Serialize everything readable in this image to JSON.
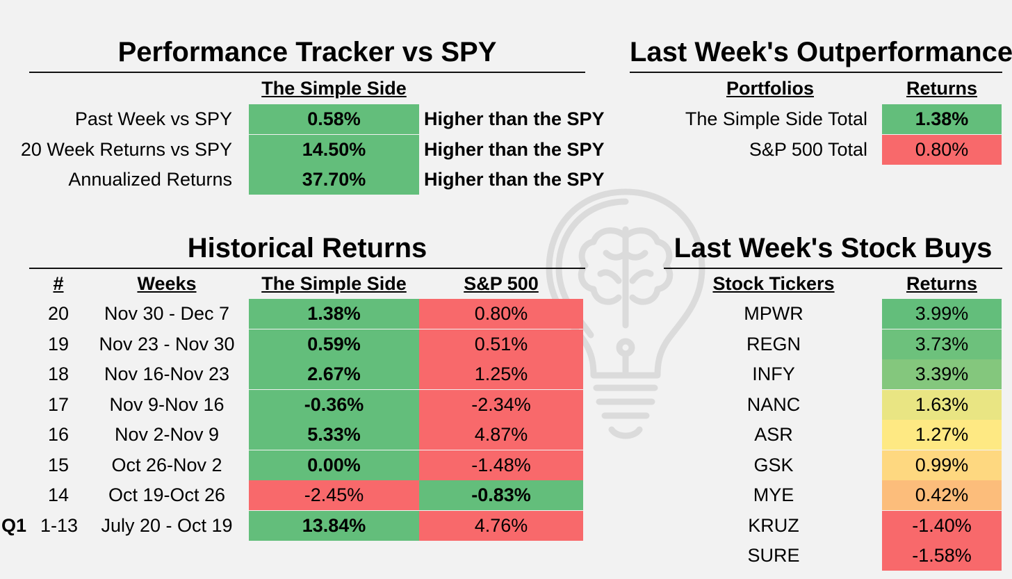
{
  "tracker": {
    "title": "Performance Tracker vs SPY",
    "col_header": "The Simple Side",
    "rows": [
      {
        "label": "Past Week vs SPY",
        "value": "0.58%",
        "note": "Higher than the SPY"
      },
      {
        "label": "20 Week Returns vs SPY",
        "value": "14.50%",
        "note": "Higher than the SPY"
      },
      {
        "label": "Annualized Returns",
        "value": "37.70%",
        "note": "Higher than the SPY"
      }
    ]
  },
  "outperformance": {
    "title": "Last Week's Outperformance",
    "headers": {
      "portfolios": "Portfolios",
      "returns": "Returns"
    },
    "rows": [
      {
        "name": "The Simple Side Total",
        "value": "1.38%",
        "color": "#63be7b",
        "bold": true
      },
      {
        "name": "S&P 500 Total",
        "value": "0.80%",
        "color": "#f8696b",
        "bold": false
      }
    ]
  },
  "historical": {
    "title": "Historical Returns",
    "headers": {
      "num": "#",
      "weeks": "Weeks",
      "simple": "The Simple Side",
      "sp": "S&P 500"
    },
    "quarter_label": "Q1",
    "rows": [
      {
        "num": "20",
        "weeks": "Nov 30 - Dec 7",
        "simple": "1.38%",
        "sp": "0.80%",
        "simple_win": true
      },
      {
        "num": "19",
        "weeks": "Nov 23 - Nov 30",
        "simple": "0.59%",
        "sp": "0.51%",
        "simple_win": true
      },
      {
        "num": "18",
        "weeks": "Nov 16-Nov 23",
        "simple": "2.67%",
        "sp": "1.25%",
        "simple_win": true
      },
      {
        "num": "17",
        "weeks": "Nov 9-Nov 16",
        "simple": "-0.36%",
        "sp": "-2.34%",
        "simple_win": true
      },
      {
        "num": "16",
        "weeks": "Nov 2-Nov 9",
        "simple": "5.33%",
        "sp": "4.87%",
        "simple_win": true
      },
      {
        "num": "15",
        "weeks": "Oct 26-Nov 2",
        "simple": "0.00%",
        "sp": "-1.48%",
        "simple_win": true
      },
      {
        "num": "14",
        "weeks": "Oct 19-Oct 26",
        "simple": "-2.45%",
        "sp": "-0.83%",
        "simple_win": false
      },
      {
        "num": "1-13",
        "weeks": "July 20 - Oct 19",
        "simple": "13.84%",
        "sp": "4.76%",
        "simple_win": true
      }
    ]
  },
  "buys": {
    "title": "Last Week's Stock Buys",
    "headers": {
      "tickers": "Stock Tickers",
      "returns": "Returns"
    },
    "rows": [
      {
        "ticker": "MPWR",
        "value": "3.99%",
        "color": "#63be7b"
      },
      {
        "ticker": "REGN",
        "value": "3.73%",
        "color": "#6dc17c"
      },
      {
        "ticker": "INFY",
        "value": "3.39%",
        "color": "#84c77d"
      },
      {
        "ticker": "NANC",
        "value": "1.63%",
        "color": "#e9e583"
      },
      {
        "ticker": "ASR",
        "value": "1.27%",
        "color": "#fee983"
      },
      {
        "ticker": "GSK",
        "value": "0.99%",
        "color": "#fed880"
      },
      {
        "ticker": "MYE",
        "value": "0.42%",
        "color": "#fcbd7b"
      },
      {
        "ticker": "KRUZ",
        "value": "-1.40%",
        "color": "#f8696b"
      },
      {
        "ticker": "SURE",
        "value": "-1.58%",
        "color": "#f8696b"
      }
    ]
  },
  "colors": {
    "positive": "#63be7b",
    "negative": "#f8696b",
    "background": "#f2f2f2"
  },
  "watermark_icon": "lightbulb-brain-icon"
}
